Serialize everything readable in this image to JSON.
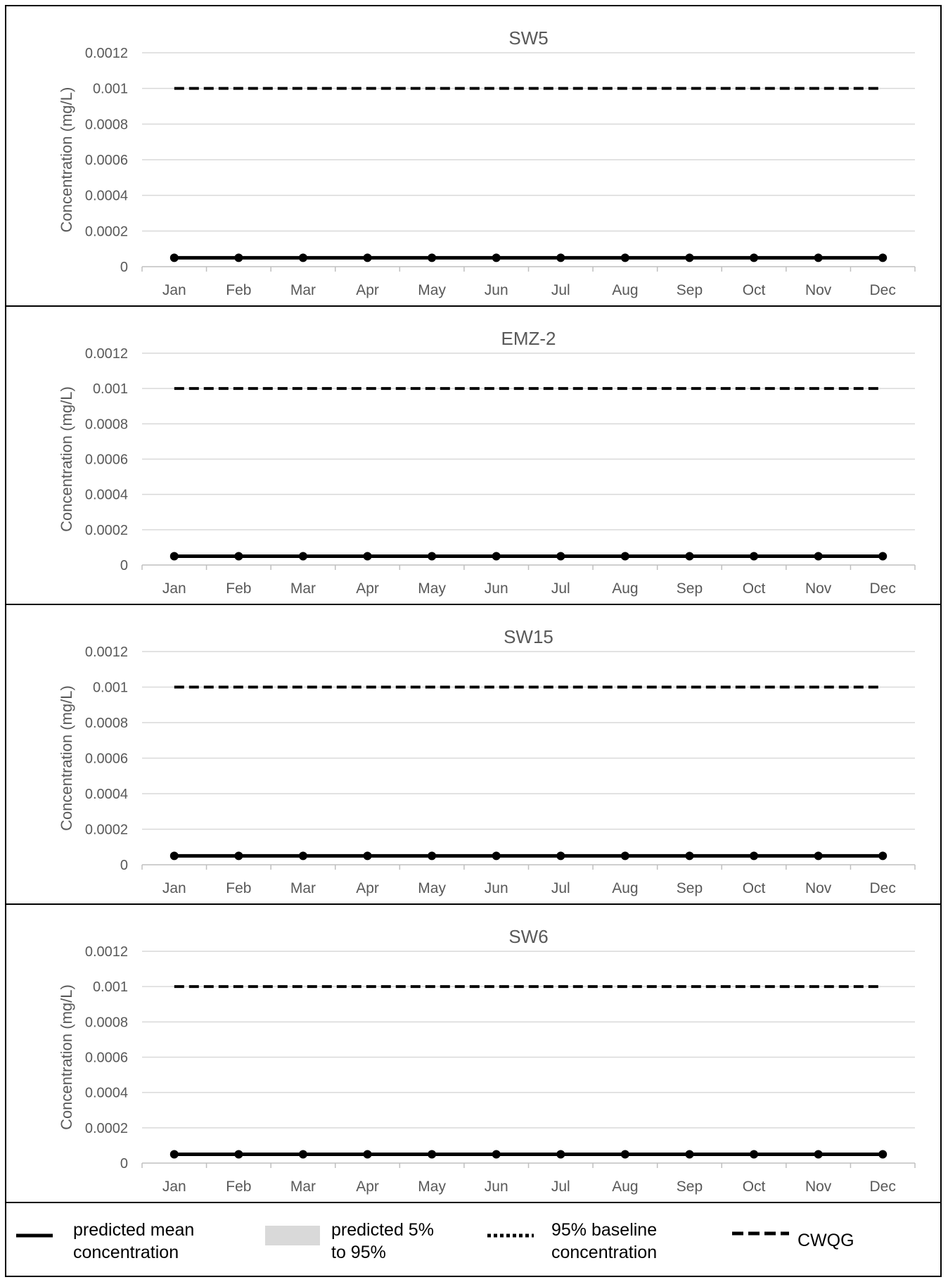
{
  "chart_data": [
    {
      "type": "line",
      "title": "SW5",
      "ylabel": "Concentration (mg/L)",
      "xlabel": "",
      "categories": [
        "Jan",
        "Feb",
        "Mar",
        "Apr",
        "May",
        "Jun",
        "Jul",
        "Aug",
        "Sep",
        "Oct",
        "Nov",
        "Dec"
      ],
      "ylim": [
        0,
        0.0012
      ],
      "yticks": [
        "0",
        "0.0002",
        "0.0004",
        "0.0006",
        "0.0008",
        "0.001",
        "0.0012"
      ],
      "grid": true,
      "series": [
        {
          "name": "predicted mean concentration",
          "style": "solid-markers",
          "values": [
            5e-05,
            5e-05,
            5e-05,
            5e-05,
            5e-05,
            5e-05,
            5e-05,
            5e-05,
            5e-05,
            5e-05,
            5e-05,
            5e-05
          ]
        },
        {
          "name": "95% baseline concentration",
          "style": "dotted",
          "values": [
            5e-05,
            5e-05,
            5e-05,
            5e-05,
            5e-05,
            5e-05,
            5e-05,
            5e-05,
            5e-05,
            5e-05,
            5e-05,
            5e-05
          ]
        },
        {
          "name": "CWQG",
          "style": "dashed",
          "values": [
            0.001,
            0.001,
            0.001,
            0.001,
            0.001,
            0.001,
            0.001,
            0.001,
            0.001,
            0.001,
            0.001,
            0.001
          ]
        }
      ]
    },
    {
      "type": "line",
      "title": "EMZ-2",
      "ylabel": "Concentration (mg/L)",
      "xlabel": "",
      "categories": [
        "Jan",
        "Feb",
        "Mar",
        "Apr",
        "May",
        "Jun",
        "Jul",
        "Aug",
        "Sep",
        "Oct",
        "Nov",
        "Dec"
      ],
      "ylim": [
        0,
        0.0012
      ],
      "yticks": [
        "0",
        "0.0002",
        "0.0004",
        "0.0006",
        "0.0008",
        "0.001",
        "0.0012"
      ],
      "grid": true,
      "series": [
        {
          "name": "predicted mean concentration",
          "style": "solid-markers",
          "values": [
            5e-05,
            5e-05,
            5e-05,
            5e-05,
            5e-05,
            5e-05,
            5e-05,
            5e-05,
            5e-05,
            5e-05,
            5e-05,
            5e-05
          ]
        },
        {
          "name": "95% baseline concentration",
          "style": "dotted",
          "values": [
            5e-05,
            5e-05,
            5e-05,
            5e-05,
            5e-05,
            5e-05,
            5e-05,
            5e-05,
            5e-05,
            5e-05,
            5e-05,
            5e-05
          ]
        },
        {
          "name": "CWQG",
          "style": "dashed",
          "values": [
            0.001,
            0.001,
            0.001,
            0.001,
            0.001,
            0.001,
            0.001,
            0.001,
            0.001,
            0.001,
            0.001,
            0.001
          ]
        }
      ]
    },
    {
      "type": "line",
      "title": "SW15",
      "ylabel": "Concentration (mg/L)",
      "xlabel": "",
      "categories": [
        "Jan",
        "Feb",
        "Mar",
        "Apr",
        "May",
        "Jun",
        "Jul",
        "Aug",
        "Sep",
        "Oct",
        "Nov",
        "Dec"
      ],
      "ylim": [
        0,
        0.0012
      ],
      "yticks": [
        "0",
        "0.0002",
        "0.0004",
        "0.0006",
        "0.0008",
        "0.001",
        "0.0012"
      ],
      "grid": true,
      "series": [
        {
          "name": "predicted mean concentration",
          "style": "solid-markers",
          "values": [
            5e-05,
            5e-05,
            5e-05,
            5e-05,
            5e-05,
            5e-05,
            5e-05,
            5e-05,
            5e-05,
            5e-05,
            5e-05,
            5e-05
          ]
        },
        {
          "name": "95% baseline concentration",
          "style": "dotted",
          "values": [
            5e-05,
            5e-05,
            5e-05,
            5e-05,
            5e-05,
            5e-05,
            5e-05,
            5e-05,
            5e-05,
            5e-05,
            5e-05,
            5e-05
          ]
        },
        {
          "name": "CWQG",
          "style": "dashed",
          "values": [
            0.001,
            0.001,
            0.001,
            0.001,
            0.001,
            0.001,
            0.001,
            0.001,
            0.001,
            0.001,
            0.001,
            0.001
          ]
        }
      ]
    },
    {
      "type": "line",
      "title": "SW6",
      "ylabel": "Concentration (mg/L)",
      "xlabel": "",
      "categories": [
        "Jan",
        "Feb",
        "Mar",
        "Apr",
        "May",
        "Jun",
        "Jul",
        "Aug",
        "Sep",
        "Oct",
        "Nov",
        "Dec"
      ],
      "ylim": [
        0,
        0.0012
      ],
      "yticks": [
        "0",
        "0.0002",
        "0.0004",
        "0.0006",
        "0.0008",
        "0.001",
        "0.0012"
      ],
      "grid": true,
      "series": [
        {
          "name": "predicted mean concentration",
          "style": "solid-markers",
          "values": [
            5e-05,
            5e-05,
            5e-05,
            5e-05,
            5e-05,
            5e-05,
            5e-05,
            5e-05,
            5e-05,
            5e-05,
            5e-05,
            5e-05
          ]
        },
        {
          "name": "95% baseline concentration",
          "style": "dotted",
          "values": [
            5e-05,
            5e-05,
            5e-05,
            5e-05,
            5e-05,
            5e-05,
            5e-05,
            5e-05,
            5e-05,
            5e-05,
            5e-05,
            5e-05
          ]
        },
        {
          "name": "CWQG",
          "style": "dashed",
          "values": [
            0.001,
            0.001,
            0.001,
            0.001,
            0.001,
            0.001,
            0.001,
            0.001,
            0.001,
            0.001,
            0.001,
            0.001
          ]
        }
      ]
    }
  ],
  "legend": {
    "items": [
      {
        "key": "mean",
        "label": "predicted mean concentration",
        "swatch": "solid-line"
      },
      {
        "key": "band",
        "label": "predicted 5% to 95%",
        "swatch": "grey-box"
      },
      {
        "key": "baseline",
        "label": "95% baseline concentration",
        "swatch": "dotted-line"
      },
      {
        "key": "cwqg",
        "label": "CWQG",
        "swatch": "dashed-line"
      }
    ]
  },
  "colors": {
    "line": "#000000",
    "grid": "#d9d9d9",
    "axis": "#bfbfbf",
    "tick_text": "#595959",
    "title_text": "#595959",
    "band": "#d9d9d9"
  }
}
